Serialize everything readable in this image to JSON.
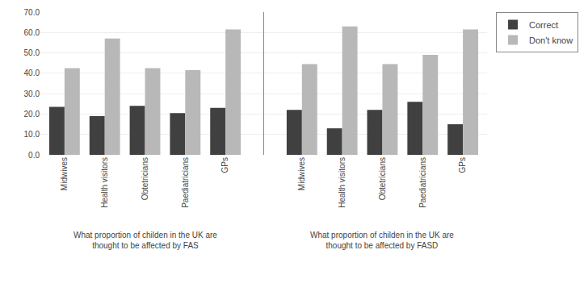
{
  "chart_data": {
    "type": "bar",
    "categories": [
      "Midwives",
      "Health visitors",
      "Obtetricians",
      "Paediatricians",
      "GPs",
      "Midwives",
      "Health visitors",
      "Obtetricians",
      "Paediatricians",
      "GPs"
    ],
    "series": [
      {
        "name": "Correct",
        "color": "#404040",
        "values": [
          23.5,
          19.0,
          24.0,
          20.5,
          23.0,
          22.0,
          13.0,
          22.0,
          26.0,
          15.0
        ]
      },
      {
        "name": "Don't know",
        "color": "#b8b8b8",
        "values": [
          42.5,
          57.0,
          42.5,
          41.5,
          61.5,
          44.5,
          63.0,
          44.5,
          49.0,
          61.5
        ]
      }
    ],
    "annotations": [
      "What proportion of childen in the UK are\nthought to be affected by FAS",
      "What proportion of childen in the UK are\nthought to be affected by FASD"
    ],
    "ylim": [
      0,
      70
    ],
    "yticks": [
      {
        "value": 0,
        "label": "0.0"
      },
      {
        "value": 10,
        "label": "10.0"
      },
      {
        "value": 20,
        "label": "20.0"
      },
      {
        "value": 30,
        "label": "30.0"
      },
      {
        "value": 40,
        "label": "40.0"
      },
      {
        "value": 50,
        "label": "50.0"
      },
      {
        "value": 60,
        "label": "60.0"
      },
      {
        "value": 70,
        "label": "70.0"
      }
    ],
    "grid": true,
    "legend": "right"
  }
}
